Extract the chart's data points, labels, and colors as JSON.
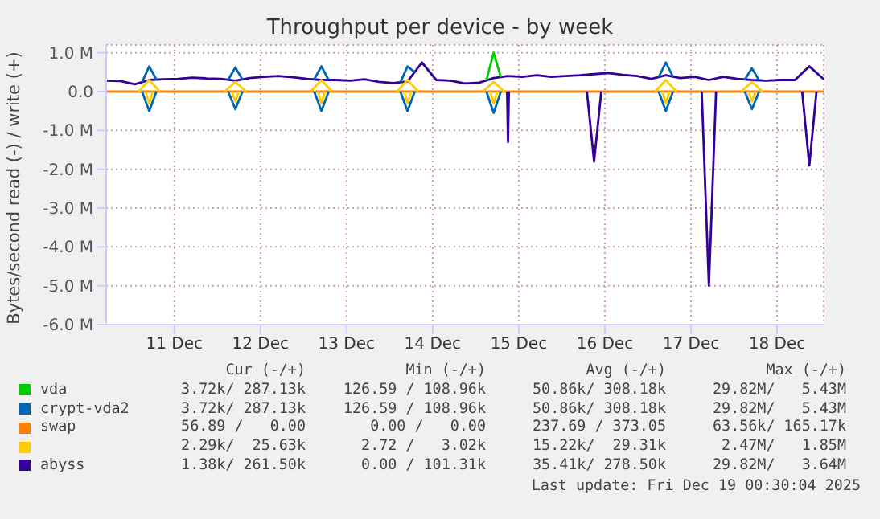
{
  "chart_data": {
    "type": "line",
    "title": "Throughput per device - by week",
    "ylabel": "Bytes/second read (-) / write (+)",
    "x": [
      "2025-12-10T17:00",
      "2025-12-10T21:00",
      "2025-12-11T01:00",
      "2025-12-11T05:00",
      "2025-12-11T09:00",
      "2025-12-11T13:00",
      "2025-12-11T17:00",
      "2025-12-11T21:00",
      "2025-12-12T01:00",
      "2025-12-12T05:00",
      "2025-12-12T09:00",
      "2025-12-12T13:00",
      "2025-12-12T17:00",
      "2025-12-12T21:00",
      "2025-12-13T01:00",
      "2025-12-13T05:00",
      "2025-12-13T09:00",
      "2025-12-13T13:00",
      "2025-12-13T17:00",
      "2025-12-13T21:00",
      "2025-12-14T01:00",
      "2025-12-14T05:00",
      "2025-12-14T09:00",
      "2025-12-14T13:00",
      "2025-12-14T17:00",
      "2025-12-14T21:00",
      "2025-12-15T01:00",
      "2025-12-15T05:00",
      "2025-12-15T09:00",
      "2025-12-15T13:00",
      "2025-12-15T17:00",
      "2025-12-15T21:00",
      "2025-12-16T01:00",
      "2025-12-16T05:00",
      "2025-12-16T09:00",
      "2025-12-16T13:00",
      "2025-12-16T17:00",
      "2025-12-16T21:00",
      "2025-12-17T01:00",
      "2025-12-17T05:00",
      "2025-12-17T09:00",
      "2025-12-17T13:00",
      "2025-12-17T17:00",
      "2025-12-17T21:00",
      "2025-12-18T01:00",
      "2025-12-18T05:00",
      "2025-12-18T09:00",
      "2025-12-18T13:00",
      "2025-12-18T17:00",
      "2025-12-18T21:00",
      "2025-12-19T01:00"
    ],
    "xlim": [
      "2025-12-10T17:00",
      "2025-12-19T01:00"
    ],
    "xticks": [
      {
        "value": "2025-12-11T12:00",
        "label": "11 Dec"
      },
      {
        "value": "2025-12-12T12:00",
        "label": "12 Dec"
      },
      {
        "value": "2025-12-13T12:00",
        "label": "13 Dec"
      },
      {
        "value": "2025-12-14T12:00",
        "label": "14 Dec"
      },
      {
        "value": "2025-12-15T12:00",
        "label": "15 Dec"
      },
      {
        "value": "2025-12-16T12:00",
        "label": "16 Dec"
      },
      {
        "value": "2025-12-17T12:00",
        "label": "17 Dec"
      },
      {
        "value": "2025-12-18T12:00",
        "label": "18 Dec"
      }
    ],
    "ylim": [
      -6000000,
      1200000
    ],
    "yticks": [
      {
        "value": 1000000,
        "label": "1.0 M"
      },
      {
        "value": 0,
        "label": "0.0"
      },
      {
        "value": -1000000,
        "label": "-1.0 M"
      },
      {
        "value": -2000000,
        "label": "-2.0 M"
      },
      {
        "value": -3000000,
        "label": "-3.0 M"
      },
      {
        "value": -4000000,
        "label": "-4.0 M"
      },
      {
        "value": -5000000,
        "label": "-5.0 M"
      },
      {
        "value": -6000000,
        "label": "-6.0 M"
      }
    ],
    "grid": true,
    "legend": "bottom",
    "marker": "none",
    "line_style": "solid",
    "series": [
      {
        "name": "swap",
        "color": "#ff8000",
        "values": [
          0,
          0,
          0,
          0,
          0,
          0,
          0,
          0,
          0,
          0,
          0,
          0,
          0,
          0,
          0,
          0,
          0,
          0,
          0,
          0,
          0,
          0,
          0,
          0,
          0,
          0,
          0,
          0,
          0,
          0,
          0,
          0,
          0,
          0,
          0,
          0,
          0,
          0,
          0,
          0,
          0,
          0,
          0,
          0,
          0,
          0,
          0,
          0,
          0,
          0,
          0
        ]
      },
      {
        "name": "abyss",
        "color": "#330099",
        "values": [
          280000,
          270000,
          190000,
          300000,
          320000,
          330000,
          360000,
          340000,
          330000,
          280000,
          350000,
          380000,
          400000,
          370000,
          330000,
          300000,
          300000,
          280000,
          320000,
          250000,
          220000,
          260000,
          750000,
          300000,
          280000,
          210000,
          230000,
          350000,
          400000,
          380000,
          420000,
          380000,
          400000,
          420000,
          450000,
          480000,
          430000,
          400000,
          330000,
          420000,
          350000,
          380000,
          300000,
          380000,
          330000,
          300000,
          280000,
          300000,
          300000,
          650000,
          320000
        ]
      },
      {
        "color": "#330099",
        "x": [
          "2025-12-15T08:45",
          "2025-12-15T09:00",
          "2025-12-15T09:15",
          "2025-12-15T12:00",
          "2025-12-16T07:00",
          "2025-12-16T09:00",
          "2025-12-16T11:00",
          "2025-12-16T14:00",
          "2025-12-17T15:00",
          "2025-12-17T17:00",
          "2025-12-17T19:00",
          "2025-12-17T22:00",
          "2025-12-18T19:00",
          "2025-12-18T21:00",
          "2025-12-18T23:00"
        ],
        "values": [
          0,
          -1300000,
          0,
          null,
          0,
          -1800000,
          0,
          null,
          0,
          -5000000,
          0,
          null,
          0,
          -1900000,
          0
        ]
      },
      {
        "color": "#ffcc00",
        "x": [
          "2025-12-11T02:00",
          "2025-12-11T05:00",
          "2025-12-11T08:00",
          "2025-12-11T10:00",
          "2025-12-12T02:00",
          "2025-12-12T05:00",
          "2025-12-12T08:00",
          "2025-12-12T10:00",
          "2025-12-13T02:00",
          "2025-12-13T05:00",
          "2025-12-13T08:00",
          "2025-12-13T10:00",
          "2025-12-14T02:00",
          "2025-12-14T05:00",
          "2025-12-14T08:00",
          "2025-12-14T10:00",
          "2025-12-15T02:00",
          "2025-12-15T05:00",
          "2025-12-15T08:00",
          "2025-12-15T10:00",
          "2025-12-17T02:00",
          "2025-12-17T05:00",
          "2025-12-17T08:00",
          "2025-12-17T10:00",
          "2025-12-18T02:00",
          "2025-12-18T05:00",
          "2025-12-18T08:00"
        ],
        "values": [
          0,
          300000,
          0,
          null,
          0,
          250000,
          0,
          null,
          0,
          300000,
          0,
          null,
          0,
          300000,
          0,
          null,
          0,
          250000,
          0,
          null,
          0,
          300000,
          0,
          null,
          0,
          250000,
          0
        ]
      },
      {
        "color": "#ffcc00",
        "x": [
          "2025-12-11T04:00",
          "2025-12-11T05:00",
          "2025-12-11T06:00",
          "2025-12-11T10:00",
          "2025-12-12T04:00",
          "2025-12-12T05:00",
          "2025-12-12T06:00",
          "2025-12-12T10:00",
          "2025-12-13T04:00",
          "2025-12-13T05:00",
          "2025-12-13T06:00",
          "2025-12-13T10:00",
          "2025-12-14T04:00",
          "2025-12-14T05:00",
          "2025-12-14T06:00",
          "2025-12-14T10:00",
          "2025-12-15T04:00",
          "2025-12-15T05:00",
          "2025-12-15T06:00",
          "2025-12-15T10:00",
          "2025-12-17T04:00",
          "2025-12-17T05:00",
          "2025-12-17T06:00",
          "2025-12-17T10:00",
          "2025-12-18T04:00",
          "2025-12-18T05:00",
          "2025-12-18T06:00"
        ],
        "values": [
          0,
          -300000,
          0,
          null,
          0,
          -250000,
          0,
          null,
          0,
          -300000,
          0,
          null,
          0,
          -300000,
          0,
          null,
          0,
          -300000,
          0,
          null,
          0,
          -300000,
          0,
          null,
          0,
          -250000,
          0
        ]
      },
      {
        "name": "crypt-vda2",
        "color": "#0066b3",
        "x": [
          "2025-12-11T03:00",
          "2025-12-11T05:00",
          "2025-12-11T07:00",
          "2025-12-11T10:00",
          "2025-12-12T03:00",
          "2025-12-12T05:00",
          "2025-12-12T07:00",
          "2025-12-12T10:00",
          "2025-12-13T03:00",
          "2025-12-13T05:00",
          "2025-12-13T07:00",
          "2025-12-13T10:00",
          "2025-12-14T03:00",
          "2025-12-14T05:00",
          "2025-12-14T07:00",
          "2025-12-14T10:00",
          "2025-12-17T03:00",
          "2025-12-17T05:00",
          "2025-12-17T07:00",
          "2025-12-17T10:00",
          "2025-12-18T03:00",
          "2025-12-18T05:00",
          "2025-12-18T07:00"
        ],
        "values": [
          240000,
          650000,
          310000,
          null,
          300000,
          620000,
          310000,
          null,
          320000,
          650000,
          300000,
          null,
          240000,
          650000,
          500000,
          null,
          370000,
          750000,
          380000,
          null,
          310000,
          600000,
          290000
        ]
      },
      {
        "color": "#0066b3",
        "x": [
          "2025-12-11T03:00",
          "2025-12-11T05:00",
          "2025-12-11T07:00",
          "2025-12-11T10:00",
          "2025-12-12T03:00",
          "2025-12-12T05:00",
          "2025-12-12T07:00",
          "2025-12-12T10:00",
          "2025-12-13T03:00",
          "2025-12-13T05:00",
          "2025-12-13T07:00",
          "2025-12-13T10:00",
          "2025-12-14T03:00",
          "2025-12-14T05:00",
          "2025-12-14T07:00",
          "2025-12-14T10:00",
          "2025-12-15T03:00",
          "2025-12-15T05:00",
          "2025-12-15T07:00",
          "2025-12-15T10:00",
          "2025-12-17T03:00",
          "2025-12-17T05:00",
          "2025-12-17T07:00",
          "2025-12-17T10:00",
          "2025-12-18T03:00",
          "2025-12-18T05:00",
          "2025-12-18T07:00"
        ],
        "values": [
          0,
          -500000,
          0,
          null,
          0,
          -450000,
          0,
          null,
          0,
          -500000,
          0,
          null,
          0,
          -500000,
          0,
          null,
          0,
          -550000,
          0,
          null,
          0,
          -500000,
          0,
          null,
          0,
          -450000,
          0
        ]
      },
      {
        "name": "vda",
        "color": "#00cc00",
        "x": [
          "2025-12-15T03:00",
          "2025-12-15T05:00",
          "2025-12-15T07:00"
        ],
        "values": [
          300000,
          1000000,
          370000
        ]
      }
    ],
    "annotations": [
      "Cur (-/+)",
      "Min (-/+)",
      "Avg (-/+)",
      "Max (-/+)",
      "3.72k/ 287.13k",
      "126.59 / 108.96k",
      "50.86k/ 308.18k",
      "29.82M/   5.43M",
      "3.72k/ 287.13k",
      "126.59 / 108.96k",
      "50.86k/ 308.18k",
      "29.82M/   5.43M",
      "56.89 /   0.00",
      "0.00 /   0.00",
      "237.69 / 373.05",
      "63.56k/ 165.17k",
      "2.29k/  25.63k",
      "2.72 /   3.02k",
      "15.22k/  29.31k",
      "2.47M/   1.85M",
      "1.38k/ 261.50k",
      "0.00 / 101.31k",
      "35.41k/ 278.50k",
      "29.82M/   3.64M",
      "Last update: Fri Dec 19 00:30:04 2025"
    ]
  }
}
